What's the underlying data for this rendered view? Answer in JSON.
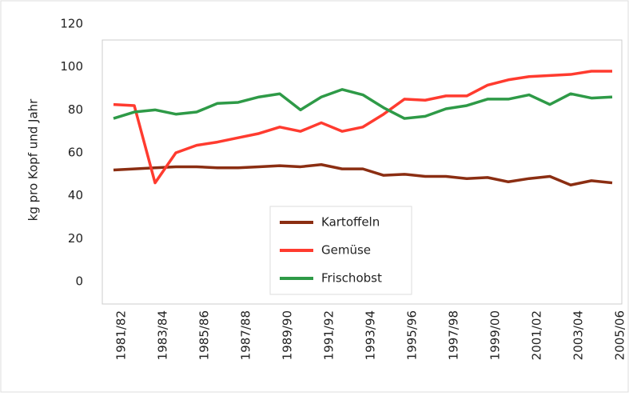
{
  "chart_data": {
    "type": "line",
    "ylabel": "kg pro Kopf und Jahr",
    "categories": [
      "1981/82",
      null,
      "1983/84",
      null,
      "1985/86",
      null,
      "1987/88",
      null,
      "1989/90",
      null,
      "1991/92",
      null,
      "1993/94",
      null,
      "1995/96",
      null,
      "1997/98",
      null,
      "1999/00",
      null,
      "2001/02",
      null,
      "2003/04",
      null,
      "2005/06"
    ],
    "series": [
      {
        "name": "Kartoffeln",
        "color": "#8b2e12",
        "values": [
          52,
          52.5,
          53,
          53.5,
          53.5,
          53,
          53,
          53.5,
          54,
          53.5,
          54.5,
          52.5,
          52.5,
          49.5,
          50,
          49,
          49,
          48,
          48.5,
          46.5,
          48,
          49,
          45,
          47,
          46
        ]
      },
      {
        "name": "Gemüse",
        "color": "#ff3b2f",
        "values": [
          82.5,
          82,
          46,
          60,
          63.5,
          65,
          67,
          69,
          72,
          70,
          74,
          70,
          72,
          78,
          85,
          84.5,
          86.5,
          86.5,
          91.5,
          94,
          95.5,
          96,
          96.5,
          98,
          98
        ]
      },
      {
        "name": "Frischobst",
        "color": "#2e9a47",
        "values": [
          76,
          79,
          80,
          78,
          79,
          83,
          83.5,
          86,
          87.5,
          80,
          86,
          89.5,
          87,
          81,
          76,
          77,
          80.5,
          82,
          85,
          85,
          87,
          82.5,
          87.5,
          85.5,
          86
        ]
      }
    ],
    "ylim": [
      0,
      120
    ],
    "yticks": [
      0,
      20,
      40,
      60,
      80,
      100,
      120
    ]
  }
}
